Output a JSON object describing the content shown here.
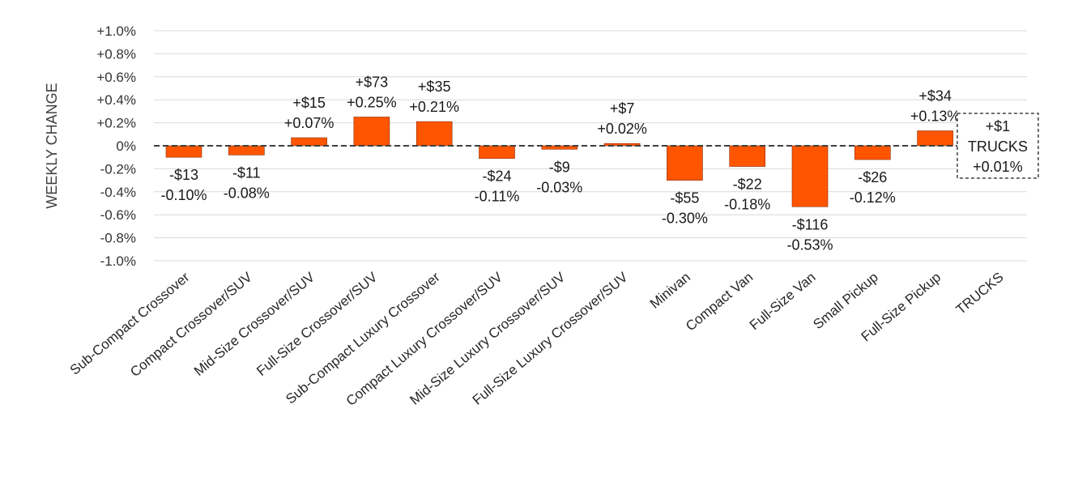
{
  "chart_data": {
    "type": "bar",
    "title": "",
    "xlabel": "",
    "ylabel": "WEEKLY CHANGE",
    "ylim": [
      -1.0,
      1.0
    ],
    "yticks": [
      1.0,
      0.8,
      0.6,
      0.4,
      0.2,
      0.0,
      -0.2,
      -0.4,
      -0.6,
      -0.8,
      -1.0
    ],
    "ytick_labels": [
      "+1.0%",
      "+0.8%",
      "+0.6%",
      "+0.4%",
      "+0.2%",
      "0%",
      "-0.2%",
      "-0.4%",
      "-0.6%",
      "-0.8%",
      "-1.0%"
    ],
    "grid": true,
    "bar_color": "#ff5500",
    "categories": [
      "Sub-Compact Crossover",
      "Compact Crossover/SUV",
      "Mid-Size Crossover/SUV",
      "Full-Size Crossover/SUV",
      "Sub-Compact Luxury Crossover",
      "Compact Luxury Crossover/SUV",
      "Mid-Size Luxury Crossover/SUV",
      "Full-Size Luxury Crossover/SUV",
      "Minivan",
      "Compact Van",
      "Full-Size Van",
      "Small Pickup",
      "Full-Size Pickup",
      "TRUCKS"
    ],
    "values": [
      -0.1,
      -0.08,
      0.07,
      0.25,
      0.21,
      -0.11,
      -0.03,
      0.02,
      -0.3,
      -0.18,
      -0.53,
      -0.12,
      0.13,
      0.01
    ],
    "dollar_labels": [
      "-$13",
      "-$11",
      "+$15",
      "+$73",
      "+$35",
      "-$24",
      "-$9",
      "+$7",
      "-$55",
      "-$22",
      "-$116",
      "-$26",
      "+$34",
      "+$1"
    ],
    "percent_labels": [
      "-0.10%",
      "-0.08%",
      "+0.07%",
      "+0.25%",
      "+0.21%",
      "-0.11%",
      "-0.03%",
      "+0.02%",
      "-0.30%",
      "-0.18%",
      "-0.53%",
      "-0.12%",
      "+0.13%",
      "+0.01%"
    ],
    "summary_box": {
      "dollar": "+$1",
      "label": "TRUCKS",
      "percent": "+0.01%"
    }
  }
}
